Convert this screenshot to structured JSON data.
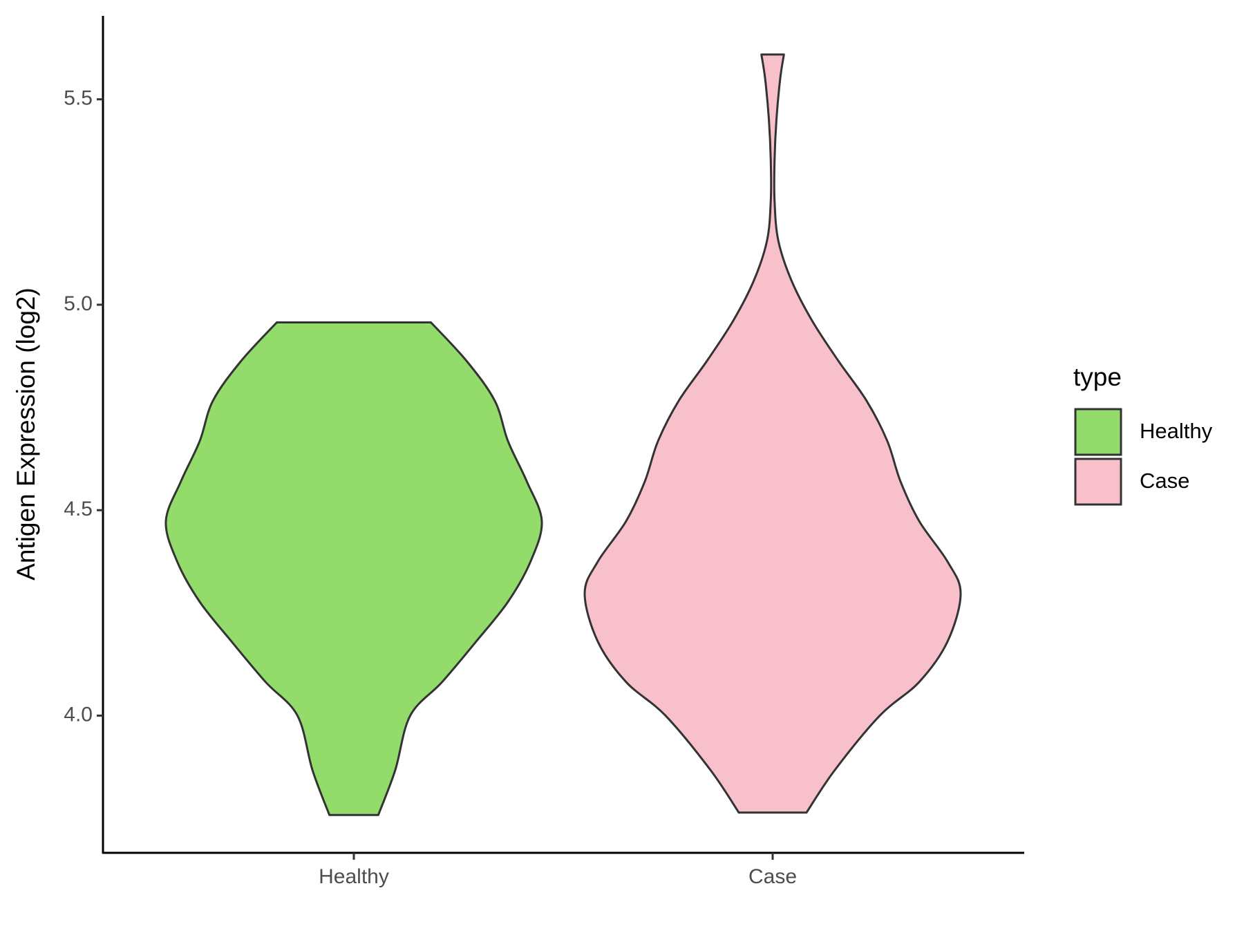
{
  "chart_data": {
    "type": "violin",
    "y_label": "Antigen Expression (log2)",
    "categories": [
      "Healthy",
      "Case"
    ],
    "legend_title": "type",
    "legend": "right",
    "ylim": [
      3.666,
      5.703
    ],
    "yticks": [
      {
        "value": 4,
        "label": "4.0"
      },
      4.5,
      {
        "value": 5,
        "label": "5.0"
      },
      5.5
    ],
    "series": [
      {
        "name": "Healthy",
        "color": "#93dc6b",
        "values": [
          3.758,
          3.867,
          4.0,
          4.082,
          4.18,
          4.277,
          4.375,
          4.473,
          4.57,
          4.668,
          4.766,
          4.863,
          4.957
        ],
        "widths": [
          0.13,
          0.22,
          0.3,
          0.47,
          0.65,
          0.82,
          0.94,
          1.0,
          0.92,
          0.82,
          0.75,
          0.6,
          0.41
        ]
      },
      {
        "name": "Case",
        "color": "#f7c0cb",
        "values": [
          3.764,
          3.867,
          4.0,
          4.082,
          4.18,
          4.297,
          4.375,
          4.473,
          4.57,
          4.668,
          4.766,
          4.863,
          4.961,
          5.059,
          5.156,
          5.254,
          5.35,
          5.45,
          5.55,
          5.609
        ],
        "widths": [
          0.18,
          0.33,
          0.57,
          0.78,
          0.93,
          1.0,
          0.93,
          0.78,
          0.68,
          0.61,
          0.5,
          0.35,
          0.21,
          0.1,
          0.03,
          0.01,
          0.01,
          0.02,
          0.04,
          0.06
        ]
      }
    ]
  }
}
